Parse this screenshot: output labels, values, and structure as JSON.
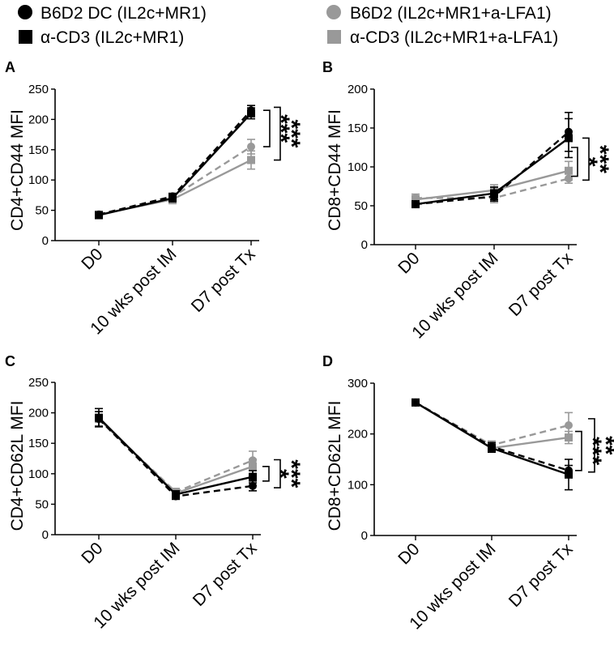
{
  "legend": [
    {
      "label": "B6D2 DC (IL2c+MR1)",
      "color": "#000000",
      "marker": "circle",
      "dash": "dashed"
    },
    {
      "label": "α-CD3 (IL2c+MR1)",
      "color": "#000000",
      "marker": "square",
      "dash": "solid"
    },
    {
      "label": "B6D2 (IL2c+MR1+a-LFA1)",
      "color": "#999999",
      "marker": "circle",
      "dash": "dashed"
    },
    {
      "label": "α-CD3 (IL2c+MR1+a-LFA1)",
      "color": "#999999",
      "marker": "square",
      "dash": "solid"
    }
  ],
  "chart_data": [
    {
      "panel": "A",
      "type": "line",
      "ylabel": "CD4+CD44 MFI",
      "categories": [
        "D0",
        "10 wks post IM",
        "D7 post Tx"
      ],
      "ylim": [
        0,
        250
      ],
      "yticks": [
        0,
        50,
        100,
        150,
        200,
        250
      ],
      "series": [
        {
          "name": "B6D2 DC (IL2c+MR1)",
          "values": [
            43,
            73,
            215
          ],
          "errors": [
            4,
            5,
            8
          ]
        },
        {
          "name": "α-CD3 (IL2c+MR1)",
          "values": [
            42,
            70,
            210
          ],
          "errors": [
            4,
            6,
            9
          ]
        },
        {
          "name": "B6D2 (IL2c+MR1+a-LFA1)",
          "values": [
            43,
            72,
            155
          ],
          "errors": [
            4,
            6,
            12
          ]
        },
        {
          "name": "α-CD3 (IL2c+MR1+a-LFA1)",
          "values": [
            43,
            68,
            133
          ],
          "errors": [
            4,
            7,
            15
          ]
        }
      ],
      "significance": [
        {
          "label": "***",
          "from": 215,
          "to": 155
        },
        {
          "label": "***",
          "from": 220,
          "to": 133
        }
      ]
    },
    {
      "panel": "B",
      "type": "line",
      "ylabel": "CD8+CD44 MFI",
      "categories": [
        "D0",
        "10 wks post IM",
        "D7 post Tx"
      ],
      "ylim": [
        0,
        200
      ],
      "yticks": [
        0,
        50,
        100,
        150,
        200
      ],
      "series": [
        {
          "name": "B6D2 DC (IL2c+MR1)",
          "values": [
            52,
            62,
            145
          ],
          "errors": [
            4,
            6,
            25
          ]
        },
        {
          "name": "α-CD3 (IL2c+MR1)",
          "values": [
            52,
            66,
            137
          ],
          "errors": [
            4,
            8,
            25
          ]
        },
        {
          "name": "B6D2 (IL2c+MR1+a-LFA1)",
          "values": [
            60,
            60,
            85
          ],
          "errors": [
            5,
            6,
            6
          ]
        },
        {
          "name": "α-CD3 (IL2c+MR1+a-LFA1)",
          "values": [
            58,
            70,
            95
          ],
          "errors": [
            5,
            7,
            12
          ]
        }
      ],
      "significance": [
        {
          "label": "*",
          "from": 125,
          "to": 88
        },
        {
          "label": "***",
          "from": 137,
          "to": 83
        }
      ]
    },
    {
      "panel": "C",
      "type": "line",
      "ylabel": "CD4+CD62L MFI",
      "categories": [
        "D0",
        "10 wks post IM",
        "D7 post Tx"
      ],
      "ylim": [
        0,
        250
      ],
      "yticks": [
        0,
        50,
        100,
        150,
        200,
        250
      ],
      "series": [
        {
          "name": "B6D2 DC (IL2c+MR1)",
          "values": [
            190,
            63,
            80
          ],
          "errors": [
            12,
            5,
            8
          ]
        },
        {
          "name": "α-CD3 (IL2c+MR1)",
          "values": [
            192,
            66,
            95
          ],
          "errors": [
            15,
            6,
            10
          ]
        },
        {
          "name": "B6D2 (IL2c+MR1+a-LFA1)",
          "values": [
            190,
            70,
            122
          ],
          "errors": [
            12,
            6,
            15
          ]
        },
        {
          "name": "α-CD3 (IL2c+MR1+a-LFA1)",
          "values": [
            190,
            68,
            112
          ],
          "errors": [
            12,
            6,
            12
          ]
        }
      ],
      "significance": [
        {
          "label": "*",
          "from": 112,
          "to": 88
        },
        {
          "label": "***",
          "from": 123,
          "to": 77
        }
      ]
    },
    {
      "panel": "D",
      "type": "line",
      "ylabel": "CD8+CD62L MFI",
      "categories": [
        "D0",
        "10 wks post IM",
        "D7 post Tx"
      ],
      "ylim": [
        0,
        300
      ],
      "yticks": [
        0,
        100,
        200,
        300
      ],
      "series": [
        {
          "name": "B6D2 DC (IL2c+MR1)",
          "values": [
            262,
            175,
            128
          ],
          "errors": [
            4,
            8,
            10
          ]
        },
        {
          "name": "α-CD3 (IL2c+MR1)",
          "values": [
            262,
            172,
            120
          ],
          "errors": [
            4,
            8,
            30
          ]
        },
        {
          "name": "B6D2 (IL2c+MR1+a-LFA1)",
          "values": [
            262,
            178,
            217
          ],
          "errors": [
            4,
            8,
            25
          ]
        },
        {
          "name": "α-CD3 (IL2c+MR1+a-LFA1)",
          "values": [
            262,
            172,
            193
          ],
          "errors": [
            4,
            8,
            12
          ]
        }
      ],
      "significance": [
        {
          "label": "***",
          "from": 205,
          "to": 128
        },
        {
          "label": "**",
          "from": 230,
          "to": 125
        }
      ]
    }
  ]
}
